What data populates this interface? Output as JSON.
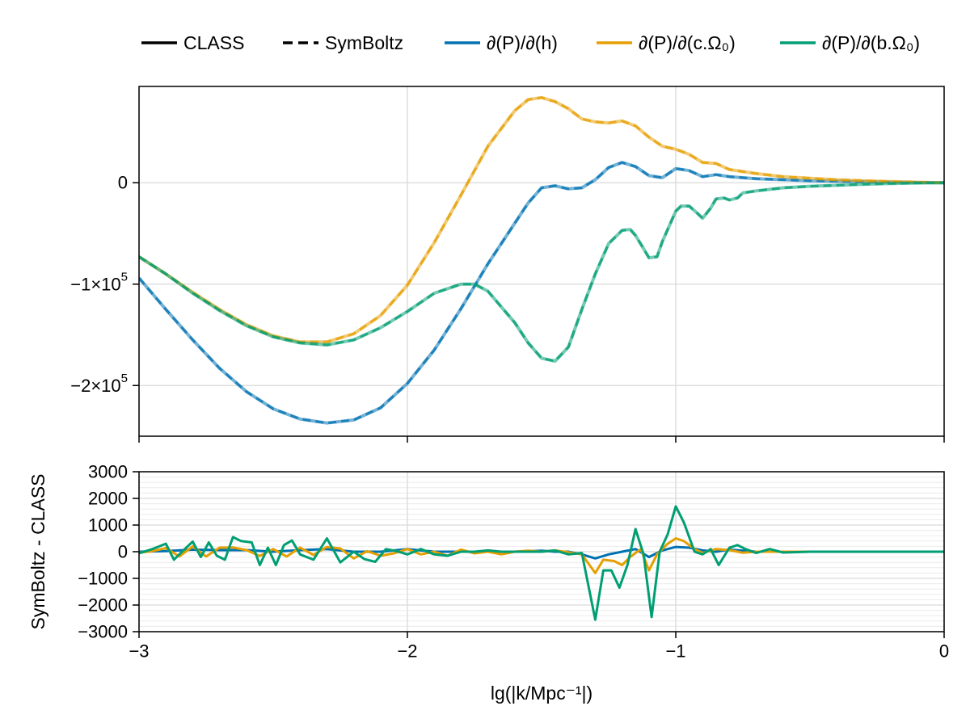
{
  "legend": {
    "items": [
      {
        "label": "CLASS",
        "style": "solid",
        "color": "#000000"
      },
      {
        "label": "SymBoltz",
        "style": "dashed",
        "color": "#000000"
      },
      {
        "label": "∂(P)/∂(h)",
        "style": "solid",
        "color": "#0072b2"
      },
      {
        "label": "∂(P)/∂(c.Ω₀)",
        "style": "solid",
        "color": "#e69f00"
      },
      {
        "label": "∂(P)/∂(b.Ω₀)",
        "style": "solid",
        "color": "#009e73"
      }
    ]
  },
  "chart_data": [
    {
      "type": "line",
      "panel": "top",
      "xlim": [
        -3,
        0
      ],
      "ylim": [
        -250000,
        95000
      ],
      "y_ticks": [
        {
          "value": 0,
          "label": "0",
          "base": "",
          "exp": ""
        },
        {
          "value": -100000,
          "label": "",
          "base": "−1×10",
          "exp": "5"
        },
        {
          "value": -200000,
          "label": "",
          "base": "−2×10",
          "exp": "5"
        }
      ],
      "x_ticks": [
        -3,
        -2,
        -1,
        0
      ],
      "grid": true,
      "series": [
        {
          "name": "∂(P)/∂(h)",
          "color": "#0072b2",
          "x": [
            -3,
            -2.9,
            -2.8,
            -2.7,
            -2.6,
            -2.5,
            -2.4,
            -2.3,
            -2.2,
            -2.1,
            -2.0,
            -1.9,
            -1.8,
            -1.7,
            -1.6,
            -1.55,
            -1.5,
            -1.45,
            -1.4,
            -1.35,
            -1.3,
            -1.25,
            -1.2,
            -1.15,
            -1.1,
            -1.05,
            -1.0,
            -0.95,
            -0.9,
            -0.85,
            -0.8,
            -0.7,
            -0.6,
            -0.5,
            -0.4,
            -0.3,
            -0.2,
            -0.1,
            0
          ],
          "y": [
            -94000,
            -125000,
            -155000,
            -183000,
            -206000,
            -223000,
            -233000,
            -237000,
            -234000,
            -222000,
            -198000,
            -165000,
            -124000,
            -80000,
            -40000,
            -20000,
            -5000,
            -3000,
            -6000,
            -5000,
            3000,
            15000,
            20000,
            16000,
            7000,
            5000,
            14000,
            12000,
            6000,
            8000,
            6000,
            4000,
            3000,
            2000,
            1500,
            1000,
            600,
            300,
            0
          ]
        },
        {
          "name": "∂(P)/∂(c.Ω₀)",
          "color": "#e69f00",
          "x": [
            -3,
            -2.9,
            -2.8,
            -2.7,
            -2.6,
            -2.5,
            -2.4,
            -2.3,
            -2.2,
            -2.1,
            -2.0,
            -1.9,
            -1.8,
            -1.7,
            -1.6,
            -1.55,
            -1.5,
            -1.45,
            -1.4,
            -1.35,
            -1.3,
            -1.25,
            -1.2,
            -1.15,
            -1.1,
            -1.05,
            -1.0,
            -0.95,
            -0.9,
            -0.85,
            -0.8,
            -0.7,
            -0.6,
            -0.5,
            -0.4,
            -0.3,
            -0.2,
            -0.1,
            0
          ],
          "y": [
            -73000,
            -90000,
            -108000,
            -125000,
            -140000,
            -151000,
            -157000,
            -157000,
            -149000,
            -131000,
            -101000,
            -59000,
            -12000,
            36000,
            71000,
            82000,
            84000,
            80000,
            73000,
            63000,
            60000,
            59000,
            61000,
            56000,
            45000,
            36000,
            33000,
            28000,
            20000,
            19000,
            13000,
            9000,
            6000,
            4500,
            3000,
            2000,
            1200,
            600,
            0
          ]
        },
        {
          "name": "∂(P)/∂(b.Ω₀)",
          "color": "#009e73",
          "x": [
            -3,
            -2.9,
            -2.8,
            -2.7,
            -2.6,
            -2.5,
            -2.4,
            -2.3,
            -2.2,
            -2.1,
            -2.0,
            -1.9,
            -1.8,
            -1.75,
            -1.7,
            -1.6,
            -1.55,
            -1.5,
            -1.45,
            -1.4,
            -1.35,
            -1.3,
            -1.25,
            -1.2,
            -1.17,
            -1.15,
            -1.12,
            -1.1,
            -1.07,
            -1.05,
            -1.02,
            -1.0,
            -0.98,
            -0.95,
            -0.92,
            -0.9,
            -0.87,
            -0.85,
            -0.82,
            -0.8,
            -0.77,
            -0.75,
            -0.7,
            -0.6,
            -0.5,
            -0.4,
            -0.3,
            -0.2,
            -0.1,
            0
          ],
          "y": [
            -73000,
            -90000,
            -109000,
            -126000,
            -141000,
            -152000,
            -158000,
            -160000,
            -155000,
            -143000,
            -127000,
            -109000,
            -100000,
            -100000,
            -107000,
            -138000,
            -158000,
            -173000,
            -176000,
            -162000,
            -125000,
            -90000,
            -60000,
            -47000,
            -46000,
            -52000,
            -65000,
            -74000,
            -73000,
            -58000,
            -40000,
            -28000,
            -23000,
            -23000,
            -30000,
            -35000,
            -25000,
            -16000,
            -15000,
            -17000,
            -15000,
            -10000,
            -8000,
            -5000,
            -3500,
            -2500,
            -1500,
            -800,
            -300,
            0
          ]
        }
      ]
    },
    {
      "type": "line",
      "panel": "bottom",
      "xlabel": "lg(|k/Mpc⁻¹|)",
      "ylabel": "SymBoltz - CLASS",
      "xlim": [
        -3,
        0
      ],
      "ylim": [
        -3000,
        3000
      ],
      "x_ticks": [
        {
          "value": -3,
          "label": "−3"
        },
        {
          "value": -2,
          "label": "−2"
        },
        {
          "value": -1,
          "label": "−1"
        },
        {
          "value": 0,
          "label": "0"
        }
      ],
      "y_ticks": [
        {
          "value": 3000,
          "label": "3000"
        },
        {
          "value": 2000,
          "label": "2000"
        },
        {
          "value": 1000,
          "label": "1000"
        },
        {
          "value": 0,
          "label": "0"
        },
        {
          "value": -1000,
          "label": "−1000"
        },
        {
          "value": -2000,
          "label": "−2000"
        },
        {
          "value": -3000,
          "label": "−3000"
        }
      ],
      "grid": true,
      "series": [
        {
          "name": "∂(P)/∂(h)",
          "color": "#0072b2",
          "x": [
            -3,
            -2.9,
            -2.8,
            -2.7,
            -2.6,
            -2.5,
            -2.4,
            -2.3,
            -2.2,
            -2.1,
            -2.0,
            -1.9,
            -1.8,
            -1.7,
            -1.6,
            -1.5,
            -1.45,
            -1.4,
            -1.35,
            -1.3,
            -1.25,
            -1.2,
            -1.15,
            -1.1,
            -1.05,
            -1.0,
            -0.95,
            -0.9,
            -0.85,
            -0.8,
            -0.7,
            -0.6,
            -0.5,
            -0.4,
            -0.3,
            -0.2,
            -0.1,
            0
          ],
          "y": [
            0,
            20,
            80,
            60,
            60,
            0,
            60,
            100,
            0,
            0,
            100,
            0,
            0,
            0,
            0,
            40,
            0,
            0,
            -100,
            -250,
            -100,
            0,
            100,
            -200,
            50,
            180,
            150,
            50,
            0,
            80,
            0,
            0,
            0,
            0,
            0,
            0,
            0,
            0
          ]
        },
        {
          "name": "∂(P)/∂(c.Ω₀)",
          "color": "#e69f00",
          "x": [
            -3,
            -2.95,
            -2.9,
            -2.85,
            -2.8,
            -2.75,
            -2.7,
            -2.65,
            -2.6,
            -2.55,
            -2.5,
            -2.45,
            -2.4,
            -2.35,
            -2.3,
            -2.25,
            -2.2,
            -2.15,
            -2.1,
            -2.05,
            -2.0,
            -1.95,
            -1.9,
            -1.85,
            -1.8,
            -1.75,
            -1.7,
            -1.65,
            -1.6,
            -1.55,
            -1.5,
            -1.45,
            -1.4,
            -1.35,
            -1.3,
            -1.27,
            -1.23,
            -1.2,
            -1.17,
            -1.13,
            -1.1,
            -1.07,
            -1.03,
            -1.0,
            -0.97,
            -0.93,
            -0.9,
            -0.85,
            -0.8,
            -0.75,
            -0.7,
            -0.6,
            -0.5,
            -0.4,
            -0.3,
            -0.2,
            -0.1,
            0
          ],
          "y": [
            -40,
            20,
            140,
            -180,
            200,
            -180,
            150,
            160,
            60,
            -160,
            100,
            -180,
            150,
            -120,
            180,
            120,
            -250,
            20,
            -150,
            -60,
            100,
            -100,
            0,
            -150,
            80,
            -60,
            0,
            -100,
            0,
            40,
            0,
            50,
            -20,
            -100,
            -800,
            -300,
            -350,
            -500,
            -200,
            100,
            -700,
            -100,
            300,
            500,
            400,
            100,
            -50,
            100,
            60,
            -40,
            0,
            0,
            0,
            0,
            0,
            0,
            0,
            0
          ]
        },
        {
          "name": "∂(P)/∂(b.Ω₀)",
          "color": "#009e73",
          "x": [
            -3,
            -2.95,
            -2.9,
            -2.87,
            -2.84,
            -2.8,
            -2.77,
            -2.74,
            -2.71,
            -2.68,
            -2.65,
            -2.62,
            -2.58,
            -2.55,
            -2.52,
            -2.49,
            -2.46,
            -2.43,
            -2.4,
            -2.35,
            -2.3,
            -2.25,
            -2.2,
            -2.16,
            -2.12,
            -2.08,
            -2.04,
            -2.0,
            -1.95,
            -1.9,
            -1.85,
            -1.8,
            -1.75,
            -1.7,
            -1.65,
            -1.6,
            -1.55,
            -1.5,
            -1.45,
            -1.4,
            -1.35,
            -1.3,
            -1.27,
            -1.24,
            -1.21,
            -1.18,
            -1.15,
            -1.12,
            -1.09,
            -1.06,
            -1.03,
            -1.0,
            -0.97,
            -0.93,
            -0.9,
            -0.87,
            -0.84,
            -0.8,
            -0.77,
            -0.74,
            -0.7,
            -0.65,
            -0.6,
            -0.5,
            -0.4,
            -0.3,
            -0.2,
            -0.1,
            0
          ],
          "y": [
            -60,
            100,
            300,
            -300,
            0,
            380,
            -200,
            350,
            -150,
            -300,
            550,
            400,
            350,
            -500,
            150,
            -500,
            250,
            420,
            -100,
            -300,
            500,
            -400,
            0,
            -280,
            -380,
            100,
            20,
            -100,
            100,
            -100,
            -150,
            0,
            0,
            50,
            0,
            0,
            0,
            0,
            50,
            -100,
            -50,
            -2550,
            -700,
            -700,
            -1350,
            -500,
            850,
            -100,
            -2450,
            0,
            650,
            1700,
            1100,
            0,
            -100,
            100,
            -500,
            150,
            250,
            100,
            -50,
            100,
            -30,
            0,
            0,
            0,
            0,
            0,
            0
          ]
        }
      ]
    }
  ]
}
